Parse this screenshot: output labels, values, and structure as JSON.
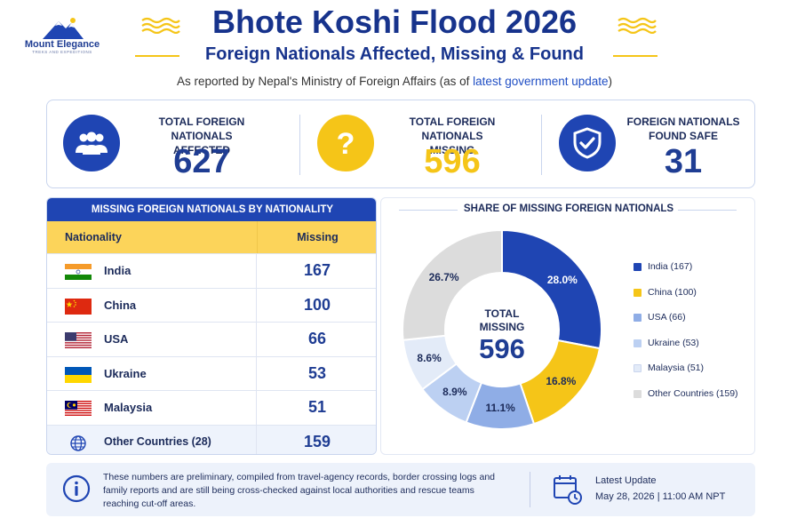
{
  "brand": {
    "logo_text": "Mount Elegance",
    "logo_subtext": "TREKS AND EXPEDITIONS"
  },
  "header": {
    "title": "Bhote Koshi Flood 2026",
    "subtitle": "Foreign Nationals Affected, Missing & Found",
    "source_prefix": "As reported by Nepal's Ministry of Foreign Affairs (as of ",
    "source_highlight": "latest government update",
    "source_suffix": ")"
  },
  "stats": [
    {
      "label_line1": "TOTAL FOREIGN NATIONALS",
      "label_line2": "AFFECTED",
      "value": "627",
      "icon": "people-group-icon",
      "color": "#1f45b3"
    },
    {
      "label_line1": "TOTAL FOREIGN NATIONALS",
      "label_line2": "MISSING",
      "value": "596",
      "icon": "question-mark-icon",
      "color": "#f5c518"
    },
    {
      "label_line1": "FOREIGN NATIONALS",
      "label_line2": "FOUND SAFE",
      "value": "31",
      "icon": "shield-check-icon",
      "color": "#1f45b3"
    }
  ],
  "table": {
    "title": "MISSING FOREIGN NATIONALS BY NATIONALITY",
    "col_nationality": "Nationality",
    "col_missing": "Missing",
    "rows": [
      {
        "name": "India",
        "value": "167",
        "flag": "india-flag-icon"
      },
      {
        "name": "China",
        "value": "100",
        "flag": "china-flag-icon"
      },
      {
        "name": "USA",
        "value": "66",
        "flag": "usa-flag-icon"
      },
      {
        "name": "Ukraine",
        "value": "53",
        "flag": "ukraine-flag-icon"
      },
      {
        "name": "Malaysia",
        "value": "51",
        "flag": "malaysia-flag-icon"
      },
      {
        "name": "Other Countries (28)",
        "value": "159",
        "flag": "globe-icon"
      }
    ]
  },
  "chart_data": {
    "type": "pie",
    "title": "SHARE OF MISSING FOREIGN NATIONALS",
    "center_label": "TOTAL MISSING",
    "center_value": "596",
    "categories": [
      "India (167)",
      "China (100)",
      "USA (66)",
      "Ukraine (53)",
      "Malaysia (51)",
      "Other Countries (159)"
    ],
    "values": [
      167,
      100,
      66,
      53,
      51,
      159
    ],
    "percent_labels": [
      "28.0%",
      "16.8%",
      "11.1%",
      "8.9%",
      "8.6%",
      "26.7%"
    ],
    "colors": [
      "#1f45b3",
      "#f5c518",
      "#8fade6",
      "#bcd0f2",
      "#e3ebf8",
      "#dcdcdc"
    ],
    "legend_position": "right"
  },
  "footer": {
    "note": "These numbers are preliminary, compiled from travel-agency records, border crossing logs and family reports and are still being cross-checked against local authorities and rescue teams reaching cut-off areas.",
    "update_label": "Latest Update",
    "update_value": "May 28, 2026 | 11:00 AM NPT"
  }
}
